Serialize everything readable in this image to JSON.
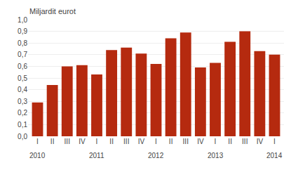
{
  "chart_data": {
    "type": "bar",
    "ylabel": "Miljardit eurot",
    "categories": [
      "I",
      "II",
      "III",
      "IV",
      "I",
      "II",
      "III",
      "IV",
      "I",
      "II",
      "III",
      "IV",
      "I",
      "II",
      "III",
      "IV",
      "I"
    ],
    "values": [
      0.29,
      0.44,
      0.6,
      0.61,
      0.53,
      0.74,
      0.76,
      0.71,
      0.62,
      0.84,
      0.89,
      0.59,
      0.63,
      0.81,
      0.9,
      0.73,
      0.7
    ],
    "color": "#b52a0f",
    "annotations": [
      {
        "text": "2010",
        "x": 0
      },
      {
        "text": "2011",
        "x": 4
      },
      {
        "text": "2012",
        "x": 8
      },
      {
        "text": "2013",
        "x": 12
      },
      {
        "text": "2014",
        "x": 16
      }
    ],
    "ylim": [
      0,
      1.0
    ],
    "yticks": [
      {
        "value": 0.0,
        "label": "0,0"
      },
      {
        "value": 0.1,
        "label": "0,1"
      },
      {
        "value": 0.2,
        "label": "0,2"
      },
      {
        "value": 0.3,
        "label": "0,3"
      },
      {
        "value": 0.4,
        "label": "0,4"
      },
      {
        "value": 0.5,
        "label": "0,5"
      },
      {
        "value": 0.6,
        "label": "0,6"
      },
      {
        "value": 0.7,
        "label": "0,7"
      },
      {
        "value": 0.8,
        "label": "0,8"
      },
      {
        "value": 0.9,
        "label": "0,9"
      },
      {
        "value": 1.0,
        "label": "1,0"
      }
    ],
    "grid": true
  }
}
